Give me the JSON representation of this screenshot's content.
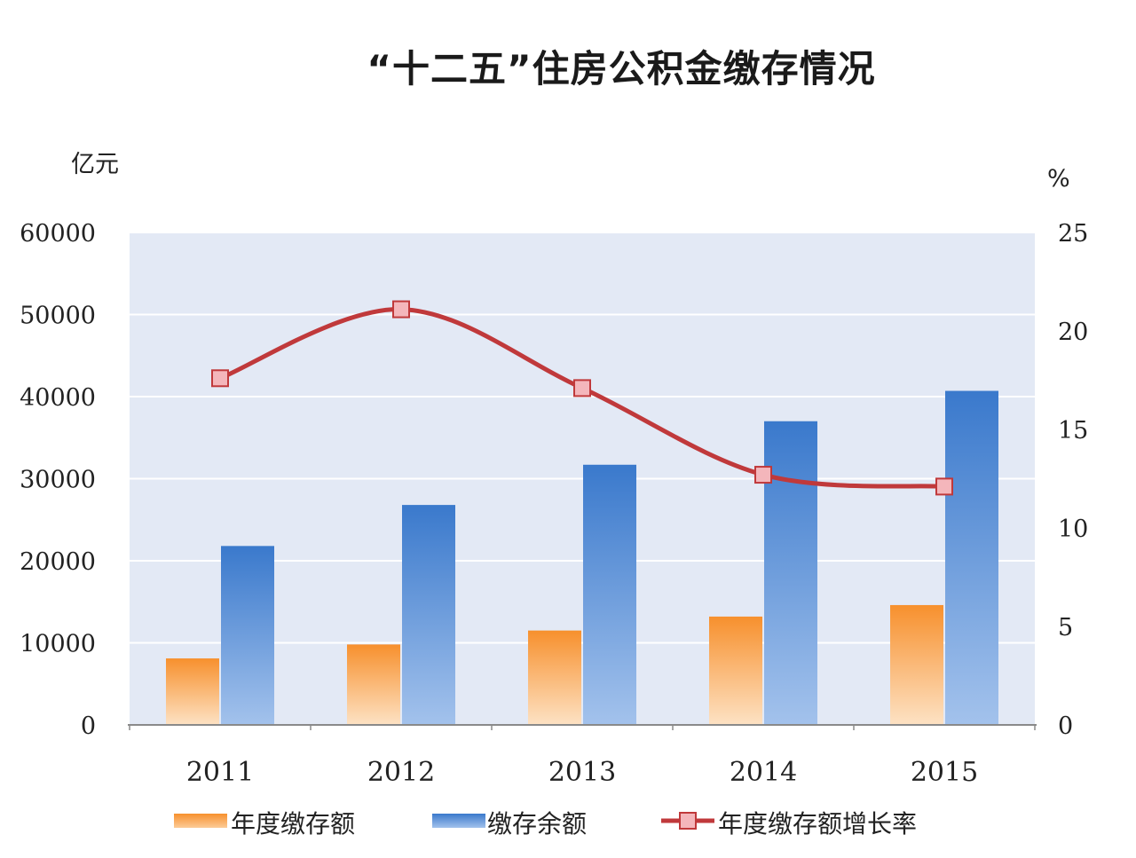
{
  "title": "“十二五”住房公积金缴存情况",
  "chart_data": {
    "type": "bar",
    "categories": [
      "2011",
      "2012",
      "2013",
      "2014",
      "2015"
    ],
    "series": [
      {
        "name": "年度缴存额",
        "type": "bar",
        "axis": "left",
        "color": "#f7923a",
        "values": [
          8100,
          9800,
          11500,
          13200,
          14600
        ]
      },
      {
        "name": "缴存余额",
        "type": "bar",
        "axis": "left",
        "color": "#3b7dd1",
        "values": [
          21800,
          26800,
          31700,
          37000,
          40700
        ]
      },
      {
        "name": "年度缴存额增长率",
        "type": "line",
        "axis": "right",
        "color": "#c0393b",
        "marker_color": "#f4b6bb",
        "values": [
          17.6,
          21.1,
          17.1,
          12.7,
          12.1
        ]
      }
    ],
    "left_axis": {
      "label": "亿元",
      "ylim": [
        0,
        60000
      ],
      "ticks": [
        "0",
        "10000",
        "20000",
        "30000",
        "40000",
        "50000",
        "60000"
      ]
    },
    "right_axis": {
      "label": "%",
      "ylim": [
        0,
        25
      ],
      "ticks": [
        "0",
        "5",
        "10",
        "15",
        "20",
        "25"
      ]
    },
    "grid": true,
    "plot_background": "#e3e9f5",
    "legend_position": "bottom"
  }
}
